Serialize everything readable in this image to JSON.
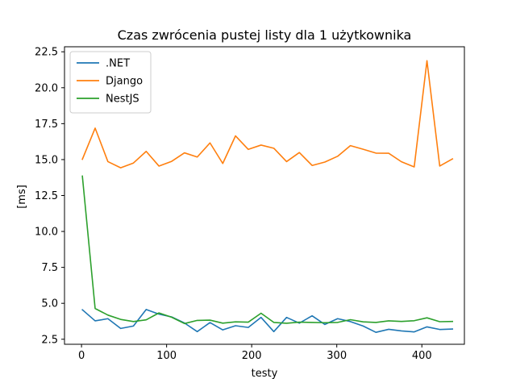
{
  "chart_data": {
    "type": "line",
    "title": "Czas zwrócenia pustej listy dla 1 użytkownika",
    "xlabel": "testy",
    "ylabel": "[ms]",
    "xlim": [
      -20,
      450
    ],
    "ylim": [
      2.15,
      22.85
    ],
    "xticks": [
      0,
      100,
      200,
      300,
      400
    ],
    "xtick_labels": [
      "0",
      "100",
      "200",
      "300",
      "400"
    ],
    "yticks": [
      2.5,
      5.0,
      7.5,
      10.0,
      12.5,
      15.0,
      17.5,
      20.0,
      22.5
    ],
    "ytick_labels": [
      "2.5",
      "5.0",
      "7.5",
      "10.0",
      "12.5",
      "15.0",
      "17.5",
      "20.0",
      "22.5"
    ],
    "grid": false,
    "legend_position": "top-left",
    "x": [
      1,
      16,
      31,
      46,
      61,
      76,
      91,
      106,
      121,
      136,
      151,
      166,
      181,
      196,
      211,
      226,
      241,
      256,
      271,
      286,
      301,
      316,
      331,
      346,
      361,
      376,
      391,
      406,
      421,
      436
    ],
    "series": [
      {
        "name": ".NET",
        "color": "#1f77b4",
        "values": [
          4.55,
          3.78,
          3.93,
          3.25,
          3.42,
          4.57,
          4.25,
          4.05,
          3.63,
          3.03,
          3.66,
          3.15,
          3.44,
          3.32,
          4.02,
          3.03,
          4.02,
          3.62,
          4.13,
          3.53,
          3.93,
          3.73,
          3.42,
          2.98,
          3.19,
          3.08,
          3.01,
          3.36,
          3.18,
          3.21
        ]
      },
      {
        "name": "Django",
        "color": "#ff7f0e",
        "values": [
          15.02,
          17.19,
          14.86,
          14.43,
          14.76,
          15.57,
          14.55,
          14.88,
          15.47,
          15.18,
          16.16,
          14.73,
          16.65,
          15.71,
          16.01,
          15.79,
          14.86,
          15.49,
          14.59,
          14.83,
          15.23,
          15.97,
          15.72,
          15.45,
          15.44,
          14.85,
          14.49,
          21.88,
          14.55,
          15.05
        ]
      },
      {
        "name": "NestJS",
        "color": "#2ca02c",
        "values": [
          13.85,
          4.64,
          4.18,
          3.88,
          3.73,
          3.85,
          4.33,
          4.03,
          3.59,
          3.81,
          3.83,
          3.62,
          3.71,
          3.69,
          4.31,
          3.67,
          3.61,
          3.69,
          3.67,
          3.65,
          3.67,
          3.86,
          3.71,
          3.67,
          3.78,
          3.74,
          3.79,
          3.99,
          3.72,
          3.74
        ]
      }
    ]
  }
}
